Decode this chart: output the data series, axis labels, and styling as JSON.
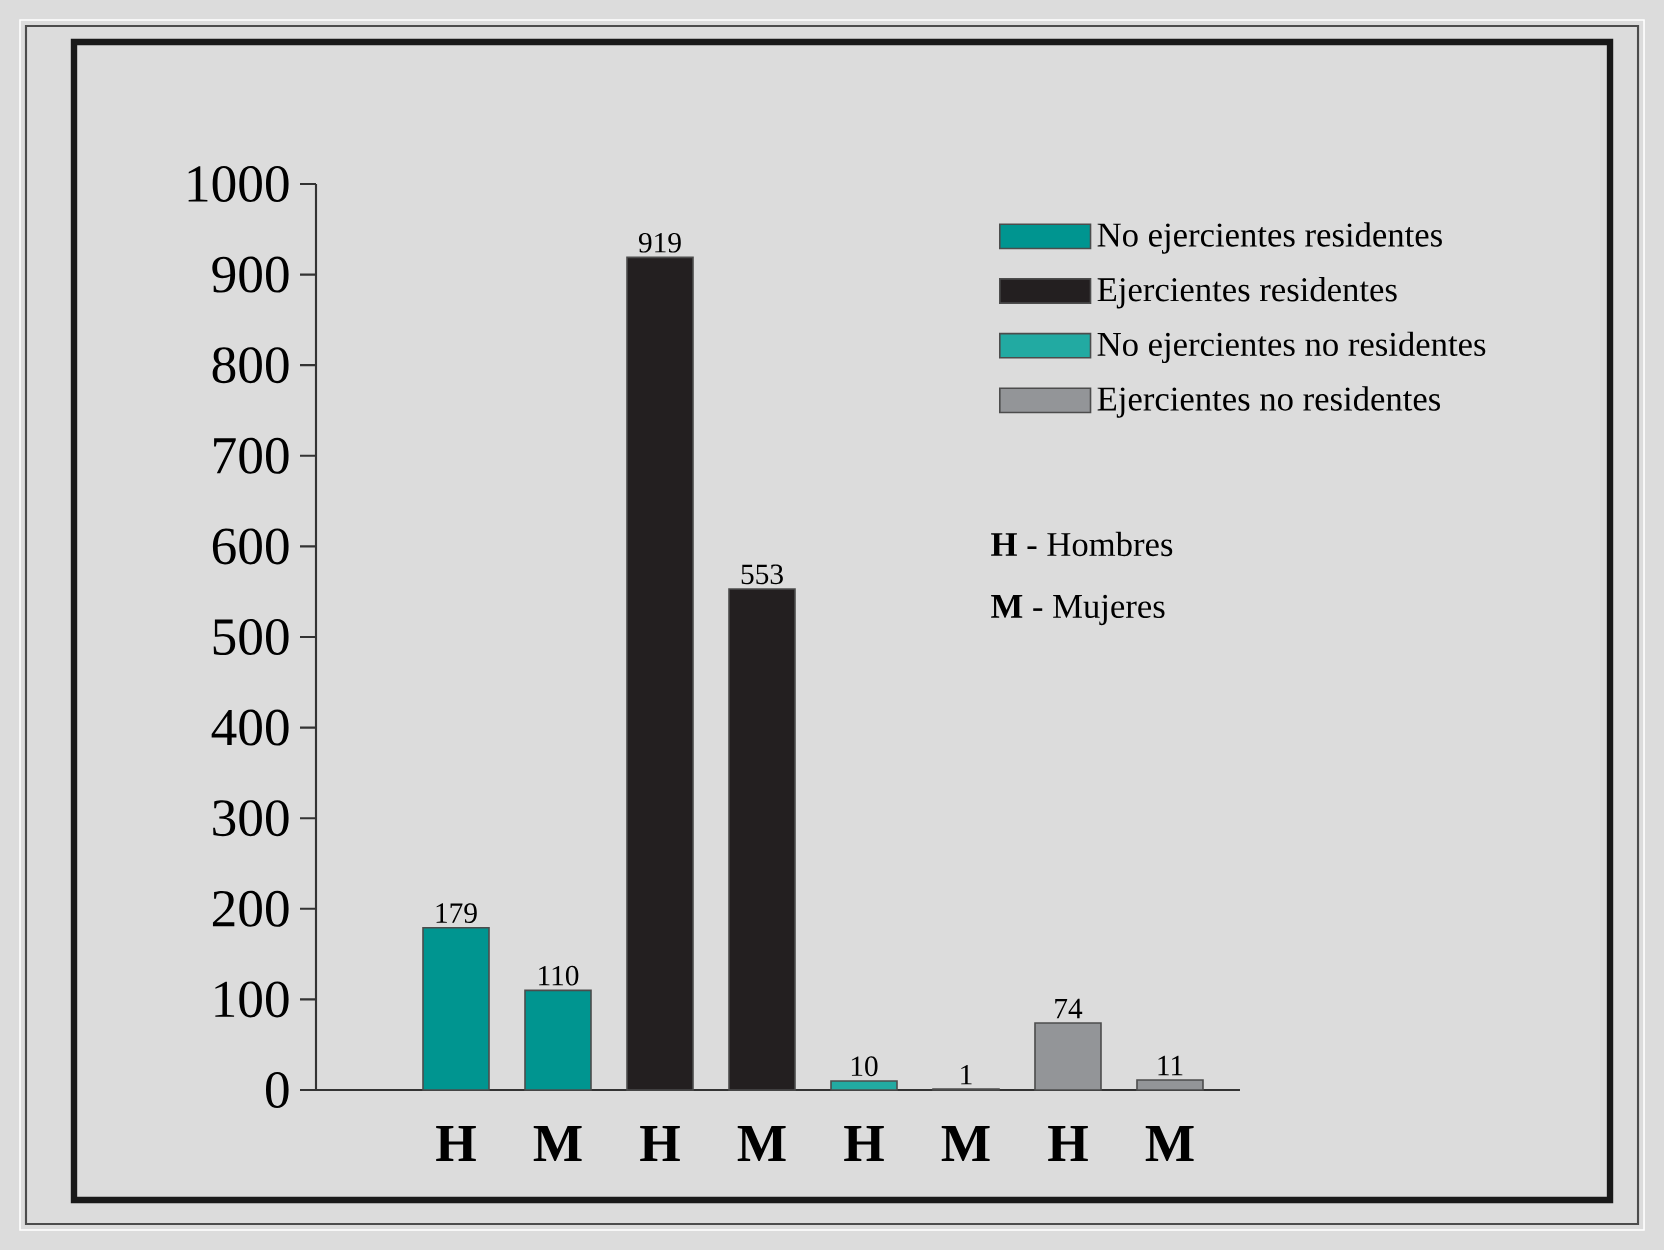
{
  "chart_data": {
    "type": "bar",
    "categories": [
      "H",
      "M",
      "H",
      "M",
      "H",
      "M",
      "H",
      "M"
    ],
    "series": [
      {
        "name": "No ejercientes residentes",
        "color": "#009590",
        "values": [
          179,
          110,
          null,
          null,
          null,
          null,
          null,
          null
        ]
      },
      {
        "name": "Ejercientes residentes",
        "color": "#231f20",
        "values": [
          null,
          null,
          919,
          553,
          null,
          null,
          null,
          null
        ]
      },
      {
        "name": "No ejercientes no residentes",
        "color": "#22aaa2",
        "values": [
          null,
          null,
          null,
          null,
          10,
          1,
          null,
          null
        ]
      },
      {
        "name": "Ejercientes no residentes",
        "color": "#939598",
        "values": [
          null,
          null,
          null,
          null,
          null,
          null,
          74,
          11
        ]
      }
    ],
    "ylim": [
      0,
      1000
    ],
    "yticks": [
      0,
      100,
      200,
      300,
      400,
      500,
      600,
      700,
      800,
      900,
      1000
    ],
    "data_labels": true,
    "legend": "top right",
    "grid": false,
    "annotations": [
      "**H** - Hombres",
      "**M** - Mujeres"
    ]
  }
}
